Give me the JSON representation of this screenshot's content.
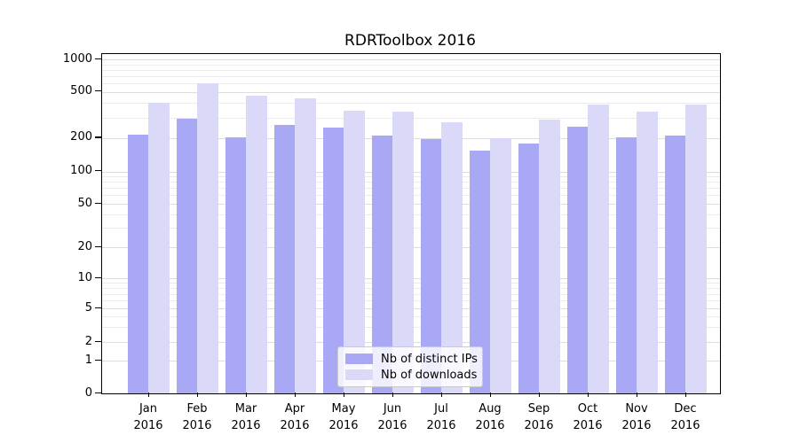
{
  "title": "RDRToolbox 2016",
  "chart_data": {
    "type": "bar",
    "title": "RDRToolbox 2016",
    "xlabel": "",
    "ylabel": "",
    "scale": "log-y with zero baseline",
    "grid": true,
    "legend_position": "lower center",
    "year": "2016",
    "categories": [
      "Jan",
      "Feb",
      "Mar",
      "Apr",
      "May",
      "Jun",
      "Jul",
      "Aug",
      "Sep",
      "Oct",
      "Nov",
      "Dec"
    ],
    "series": [
      {
        "name": "Nb of distinct IPs",
        "color": "#a8a8f5",
        "values": [
          215,
          295,
          205,
          260,
          245,
          210,
          195,
          155,
          180,
          250,
          205,
          210
        ]
      },
      {
        "name": "Nb of downloads",
        "color": "#dadaf8",
        "values": [
          405,
          600,
          465,
          440,
          345,
          335,
          275,
          200,
          290,
          385,
          335,
          385
        ]
      }
    ],
    "y_ticks": [
      0,
      1,
      2,
      5,
      10,
      20,
      50,
      100,
      200,
      500,
      1000
    ],
    "ylim": [
      0,
      1000
    ]
  },
  "colors": {
    "ips_bar": "#a8a8f5",
    "downloads_bar": "#dadaf8",
    "grid_major": "#dedede",
    "grid_minor": "#ececec",
    "axis": "#000000"
  }
}
